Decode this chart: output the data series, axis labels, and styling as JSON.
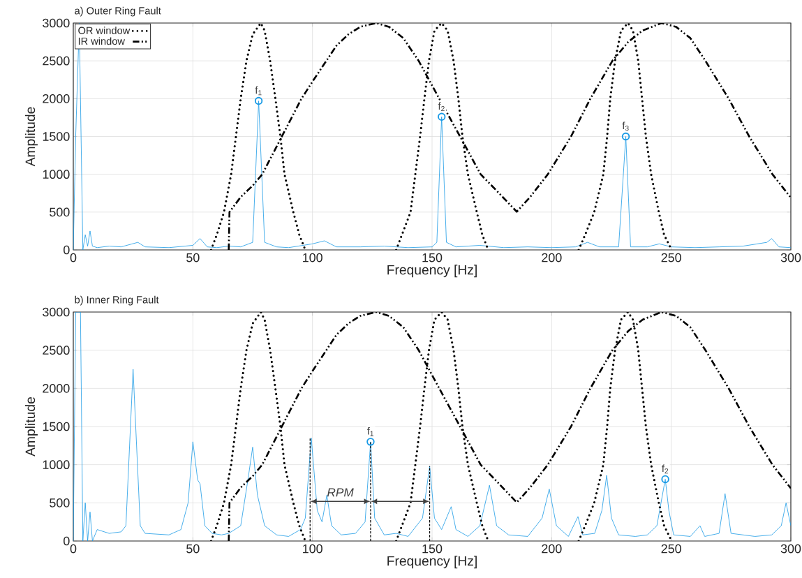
{
  "chart_data": [
    {
      "type": "line",
      "title": "a) Outer Ring Fault",
      "xlabel": "Frequency [Hz]",
      "ylabel": "Amplitude",
      "xlim": [
        0,
        300
      ],
      "ylim": [
        0,
        3000
      ],
      "xticks": [
        0,
        50,
        100,
        150,
        200,
        250,
        300
      ],
      "yticks": [
        0,
        500,
        1000,
        1500,
        2000,
        2500,
        3000
      ],
      "grid": true,
      "legend": "top left",
      "series": [
        {
          "type": "line",
          "color": "#1a9be6",
          "line_style": "solid",
          "marker": "none",
          "x": [
            0,
            1,
            2.5,
            4,
            5,
            6,
            7,
            8,
            10,
            15,
            20,
            27,
            30,
            40,
            50,
            53,
            56,
            60,
            65,
            70,
            75,
            77.5,
            80,
            85,
            90,
            100,
            105,
            110,
            120,
            130,
            140,
            150,
            152,
            154,
            156,
            160,
            170,
            180,
            190,
            200,
            210,
            215,
            220,
            228,
            231,
            233,
            240,
            245,
            250,
            260,
            270,
            280,
            290,
            292,
            295,
            300
          ],
          "values": [
            0,
            1500,
            3000,
            0,
            200,
            50,
            250,
            50,
            30,
            50,
            40,
            100,
            40,
            30,
            60,
            150,
            40,
            30,
            50,
            40,
            100,
            1970,
            100,
            40,
            30,
            80,
            120,
            40,
            40,
            50,
            30,
            40,
            100,
            1760,
            100,
            40,
            60,
            30,
            40,
            30,
            40,
            100,
            40,
            40,
            1500,
            40,
            40,
            80,
            40,
            30,
            40,
            50,
            100,
            150,
            40,
            30
          ]
        },
        {
          "type": "line",
          "name": "OR window",
          "color": "#000000",
          "line_style": "dotted",
          "marker": "none",
          "x": [
            57.6,
            60,
            63,
            66,
            68,
            70,
            72.4,
            75,
            78.4,
            80,
            82.3,
            84.5,
            86.6,
            88.3,
            92,
            94.5,
            97,
            116,
            135,
            138,
            141,
            143,
            145,
            146.8,
            148.7,
            151,
            154,
            156.5,
            159,
            161,
            162.7,
            165,
            168.7,
            171,
            173.5,
            192,
            211.3,
            214,
            217.8,
            221.6,
            223.2,
            224.5,
            226.5,
            229,
            231.9,
            234,
            236.2,
            237.8,
            239.4,
            241.6,
            244.8,
            247,
            250.2
          ],
          "values": [
            0,
            200,
            500,
            1000,
            1500,
            2000,
            2500,
            2850,
            3000,
            2900,
            2500,
            2000,
            1500,
            1000,
            500,
            200,
            0,
            null,
            0,
            250,
            500,
            1000,
            1500,
            2000,
            2500,
            2900,
            3000,
            2900,
            2500,
            2000,
            1500,
            1000,
            500,
            200,
            0,
            null,
            0,
            200,
            500,
            1000,
            1500,
            2000,
            2500,
            2900,
            3000,
            2900,
            2500,
            2000,
            1500,
            1000,
            500,
            200,
            0
          ]
        },
        {
          "type": "line",
          "name": "IR window",
          "color": "#000000",
          "line_style": "dashed",
          "marker": "none",
          "x": [
            65,
            65.3,
            70,
            75,
            79,
            87.2,
            95.4,
            100.5,
            105.8,
            110,
            115,
            120,
            126.6,
            132,
            138,
            144.4,
            153,
            161.7,
            170.3,
            178,
            185.4,
            191,
            198.4,
            208.1,
            216.2,
            225.4,
            232,
            238,
            245.9,
            252,
            258,
            264.3,
            274,
            282.6,
            292.3,
            300
          ],
          "values": [
            0,
            500,
            700,
            850,
            1000,
            1500,
            2000,
            2250,
            2500,
            2700,
            2850,
            2950,
            3000,
            2950,
            2800,
            2500,
            2000,
            1500,
            1000,
            750,
            505,
            700,
            1000,
            1500,
            2000,
            2500,
            2750,
            2900,
            3000,
            2950,
            2800,
            2500,
            2000,
            1500,
            1000,
            690
          ]
        },
        {
          "type": "scatter",
          "color": "#1a9be6",
          "marker": "circle",
          "x": [
            77.5,
            154,
            231
          ],
          "values": [
            1970,
            1760,
            1500
          ]
        }
      ],
      "annotations": [
        {
          "text": "f$_{1}$",
          "x": 77.5,
          "y": 1970
        },
        {
          "text": "f$_{2}$",
          "x": 154,
          "y": 1760
        },
        {
          "text": "f$_{3}$",
          "x": 231,
          "y": 1500
        }
      ]
    },
    {
      "type": "line",
      "title": "b) Inner Ring Fault",
      "xlabel": "Frequency [Hz]",
      "ylabel": "Amplitude",
      "xlim": [
        0,
        300
      ],
      "ylim": [
        0,
        3000
      ],
      "xticks": [
        0,
        50,
        100,
        150,
        200,
        250,
        300
      ],
      "yticks": [
        0,
        500,
        1000,
        1500,
        2000,
        2500,
        3000
      ],
      "grid": true,
      "series": [
        {
          "type": "line",
          "color": "#1a9be6",
          "line_style": "solid",
          "marker": "none",
          "x": [
            0,
            1,
            3,
            4,
            5,
            6,
            7,
            8,
            10,
            15,
            20,
            22,
            25,
            28,
            30,
            40,
            45,
            48,
            50,
            52,
            53,
            55,
            58,
            62,
            65,
            70,
            73,
            75,
            77,
            80,
            85,
            90,
            95,
            97,
            99.5,
            102,
            104,
            106,
            108,
            112,
            118,
            122,
            124.3,
            126,
            130,
            135,
            140,
            146,
            149,
            151,
            154,
            158,
            160,
            165,
            170,
            174,
            177,
            182,
            190,
            196,
            199,
            202,
            207,
            211,
            213,
            218,
            221,
            223,
            225,
            228,
            235,
            240,
            244,
            247.5,
            249,
            251,
            258,
            262,
            264,
            270,
            272.5,
            275,
            285,
            292,
            296,
            298,
            300
          ],
          "values": [
            0,
            3000,
            3000,
            0,
            500,
            0,
            380,
            0,
            150,
            100,
            120,
            200,
            2250,
            200,
            100,
            80,
            150,
            500,
            1300,
            800,
            750,
            200,
            100,
            80,
            100,
            200,
            800,
            1230,
            600,
            200,
            80,
            60,
            150,
            300,
            1350,
            400,
            250,
            600,
            200,
            80,
            100,
            250,
            1300,
            300,
            80,
            100,
            60,
            300,
            980,
            300,
            150,
            450,
            150,
            60,
            200,
            730,
            200,
            80,
            60,
            300,
            680,
            200,
            60,
            320,
            80,
            100,
            400,
            860,
            300,
            80,
            60,
            80,
            200,
            810,
            400,
            80,
            60,
            200,
            60,
            100,
            620,
            100,
            60,
            80,
            200,
            500,
            200
          ]
        },
        {
          "type": "line",
          "color": "#000000",
          "line_style": "dotted",
          "marker": "none",
          "x": [
            57.6,
            60,
            63,
            66,
            68,
            70,
            72.4,
            75,
            78.4,
            80,
            82.3,
            84.5,
            86.6,
            88.3,
            92,
            94.5,
            97,
            116,
            135,
            138,
            141,
            143,
            145,
            146.8,
            148.7,
            151,
            154,
            156.5,
            159,
            161,
            162.7,
            165,
            168.7,
            171,
            173.5,
            192,
            211.3,
            214,
            217.8,
            221.6,
            223.2,
            224.5,
            226.5,
            229,
            231.9,
            234,
            236.2,
            237.8,
            239.4,
            241.6,
            244.8,
            247,
            250.2
          ],
          "values": [
            0,
            200,
            500,
            1000,
            1500,
            2000,
            2500,
            2850,
            3000,
            2900,
            2500,
            2000,
            1500,
            1000,
            500,
            200,
            0,
            null,
            0,
            250,
            500,
            1000,
            1500,
            2000,
            2500,
            2900,
            3000,
            2900,
            2500,
            2000,
            1500,
            1000,
            500,
            200,
            0,
            null,
            0,
            200,
            500,
            1000,
            1500,
            2000,
            2500,
            2900,
            3000,
            2900,
            2500,
            2000,
            1500,
            1000,
            500,
            200,
            0
          ]
        },
        {
          "type": "line",
          "color": "#000000",
          "line_style": "dashed",
          "marker": "none",
          "x": [
            65,
            65.3,
            70,
            75,
            79,
            87.2,
            95.4,
            100.5,
            105.8,
            110,
            115,
            120,
            126.6,
            132,
            138,
            144.4,
            153,
            161.7,
            170.3,
            178,
            185.4,
            191,
            198.4,
            208.1,
            216.2,
            225.4,
            232,
            238,
            245.9,
            252,
            258,
            264.3,
            274,
            282.6,
            292.3,
            300
          ],
          "values": [
            0,
            500,
            700,
            850,
            1000,
            1500,
            2000,
            2250,
            2500,
            2700,
            2850,
            2950,
            3000,
            2950,
            2800,
            2500,
            2000,
            1500,
            1000,
            750,
            505,
            700,
            1000,
            1500,
            2000,
            2500,
            2750,
            2900,
            3000,
            2950,
            2800,
            2500,
            2000,
            1500,
            1000,
            690
          ]
        },
        {
          "type": "scatter",
          "color": "#1a9be6",
          "marker": "circle",
          "x": [
            124.3,
            247.5
          ],
          "values": [
            1300,
            810
          ]
        }
      ],
      "ref_lines": [
        {
          "axis": "x",
          "value": 99,
          "color": "#000000",
          "line_style": "dashed"
        },
        {
          "axis": "x",
          "value": 124.3,
          "color": "#000000",
          "line_style": "dashed"
        },
        {
          "axis": "x",
          "value": 149,
          "color": "#000000",
          "line_style": "dashed"
        }
      ],
      "annotations": [
        {
          "text": "f$_{1}$",
          "x": 124.3,
          "y": 1300
        },
        {
          "text": "f$_{2}$",
          "x": 247.5,
          "y": 810
        },
        "RPM"
      ]
    }
  ]
}
